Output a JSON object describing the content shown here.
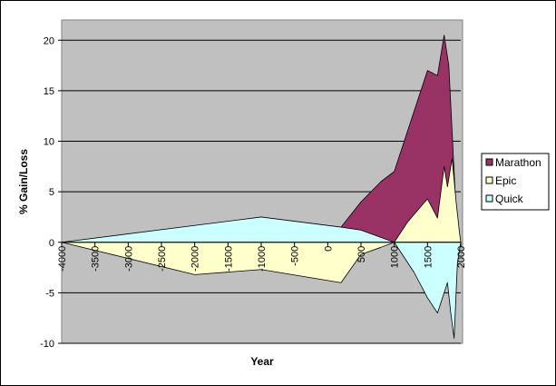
{
  "chart_data": {
    "type": "area",
    "xlabel": "Year",
    "ylabel": "% Gain/Loss",
    "ylim": [
      -10,
      22
    ],
    "xlim": [
      -4000,
      2000
    ],
    "y_ticks": [
      "20",
      "15",
      "10",
      "5",
      "0",
      "-5",
      "-10"
    ],
    "x_ticks": [
      "-4000",
      "-3500",
      "-3000",
      "-2500",
      "-2000",
      "-1500",
      "-1000",
      "-500",
      "0",
      "500",
      "1000",
      "1500",
      "2000"
    ],
    "grid": "horizontal",
    "legend_placement": "right",
    "colors": {
      "plot_bg": "#c0c0c0",
      "Marathon": "#993366",
      "Epic": "#ffffcc",
      "Quick": "#ccffff"
    },
    "series": [
      {
        "name": "Marathon",
        "points": [
          [
            200,
            1.5
          ],
          [
            500,
            4
          ],
          [
            800,
            6
          ],
          [
            1000,
            7
          ],
          [
            1250,
            12
          ],
          [
            1500,
            17
          ],
          [
            1650,
            16.5
          ],
          [
            1750,
            20.5
          ],
          [
            1820,
            17.5
          ],
          [
            1900,
            7
          ],
          [
            1950,
            0.5
          ],
          [
            2000,
            0
          ]
        ]
      },
      {
        "name": "Epic",
        "points": [
          [
            -4000,
            0
          ],
          [
            -2000,
            -3.2
          ],
          [
            -1000,
            -2.7
          ],
          [
            200,
            -4
          ],
          [
            500,
            -1.2
          ],
          [
            800,
            -0.5
          ],
          [
            1000,
            0
          ],
          [
            1200,
            2
          ],
          [
            1500,
            4.3
          ],
          [
            1650,
            2.4
          ],
          [
            1750,
            7.5
          ],
          [
            1800,
            5.5
          ],
          [
            1870,
            8.3
          ],
          [
            1930,
            4
          ],
          [
            1980,
            1
          ],
          [
            2000,
            0
          ]
        ]
      },
      {
        "name": "Quick",
        "points": [
          [
            -4000,
            0
          ],
          [
            -1000,
            2.5
          ],
          [
            200,
            1.5
          ],
          [
            500,
            1.2
          ],
          [
            1000,
            0
          ],
          [
            1300,
            -3
          ],
          [
            1500,
            -5.5
          ],
          [
            1650,
            -7
          ],
          [
            1750,
            -5
          ],
          [
            1800,
            -4
          ],
          [
            1850,
            -7
          ],
          [
            1900,
            -9.5
          ],
          [
            1950,
            -2
          ],
          [
            2000,
            0
          ]
        ]
      }
    ]
  }
}
